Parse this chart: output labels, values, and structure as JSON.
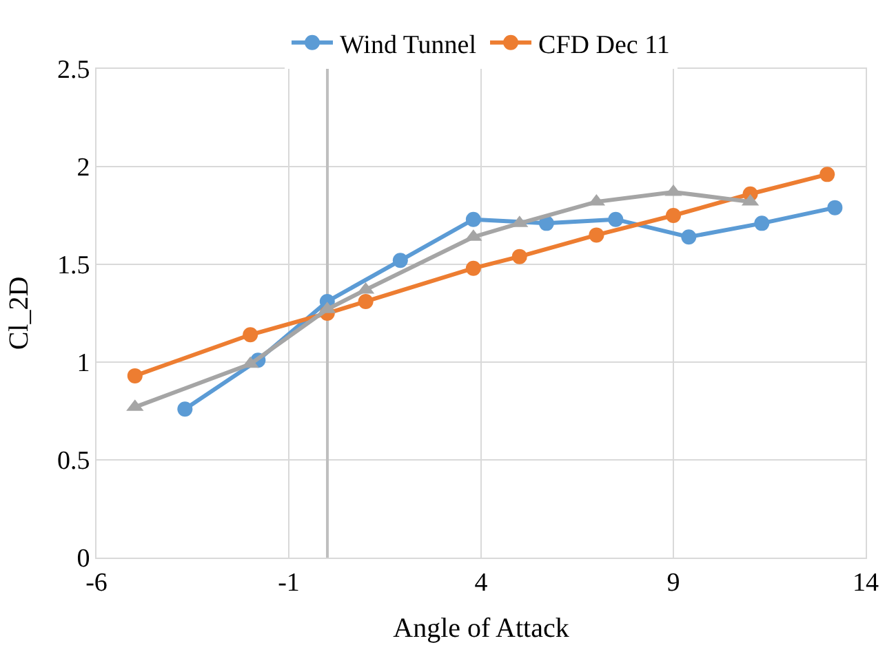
{
  "chart_data": {
    "type": "line",
    "xlabel": "Angle of Attack",
    "ylabel": "Cl_2D",
    "xlim": [
      -6,
      14
    ],
    "xticks": [
      -6,
      -1,
      4,
      9,
      14
    ],
    "ylim": [
      0,
      2.5
    ],
    "yticks": [
      0,
      {
        "value": 0.5,
        "label": "0.5"
      },
      1,
      {
        "value": 1.5,
        "label": "1.5"
      },
      2,
      {
        "value": 2.5,
        "label": "2.5"
      }
    ],
    "grid": true,
    "legend": "top",
    "marker": "circle",
    "line_style": "solid",
    "series": [
      {
        "name": "Wind Tunnel",
        "color": "#5b9bd5",
        "x": [
          -3.7,
          -1.8,
          0,
          1.9,
          3.8,
          5.7,
          7.5,
          9.4,
          11.3,
          13.2
        ],
        "values": [
          0.76,
          1.01,
          1.31,
          1.52,
          1.73,
          1.71,
          1.73,
          1.64,
          1.71,
          1.79
        ]
      },
      {
        "name": "CFD Dec 11",
        "color": "#ed7d31",
        "x": [
          -5,
          -2,
          0,
          1,
          3.8,
          5,
          7,
          9,
          11,
          13
        ],
        "values": [
          0.93,
          1.14,
          1.25,
          1.31,
          1.48,
          1.54,
          1.65,
          1.75,
          1.86,
          1.96
        ]
      },
      {
        "color": "#a5a5a5",
        "marker": "triangle",
        "x": [
          -5,
          -2,
          0,
          1,
          3.8,
          5,
          7,
          9,
          11
        ],
        "values": [
          0.77,
          0.99,
          1.27,
          1.37,
          1.64,
          1.71,
          1.82,
          1.87,
          1.82
        ]
      }
    ]
  }
}
